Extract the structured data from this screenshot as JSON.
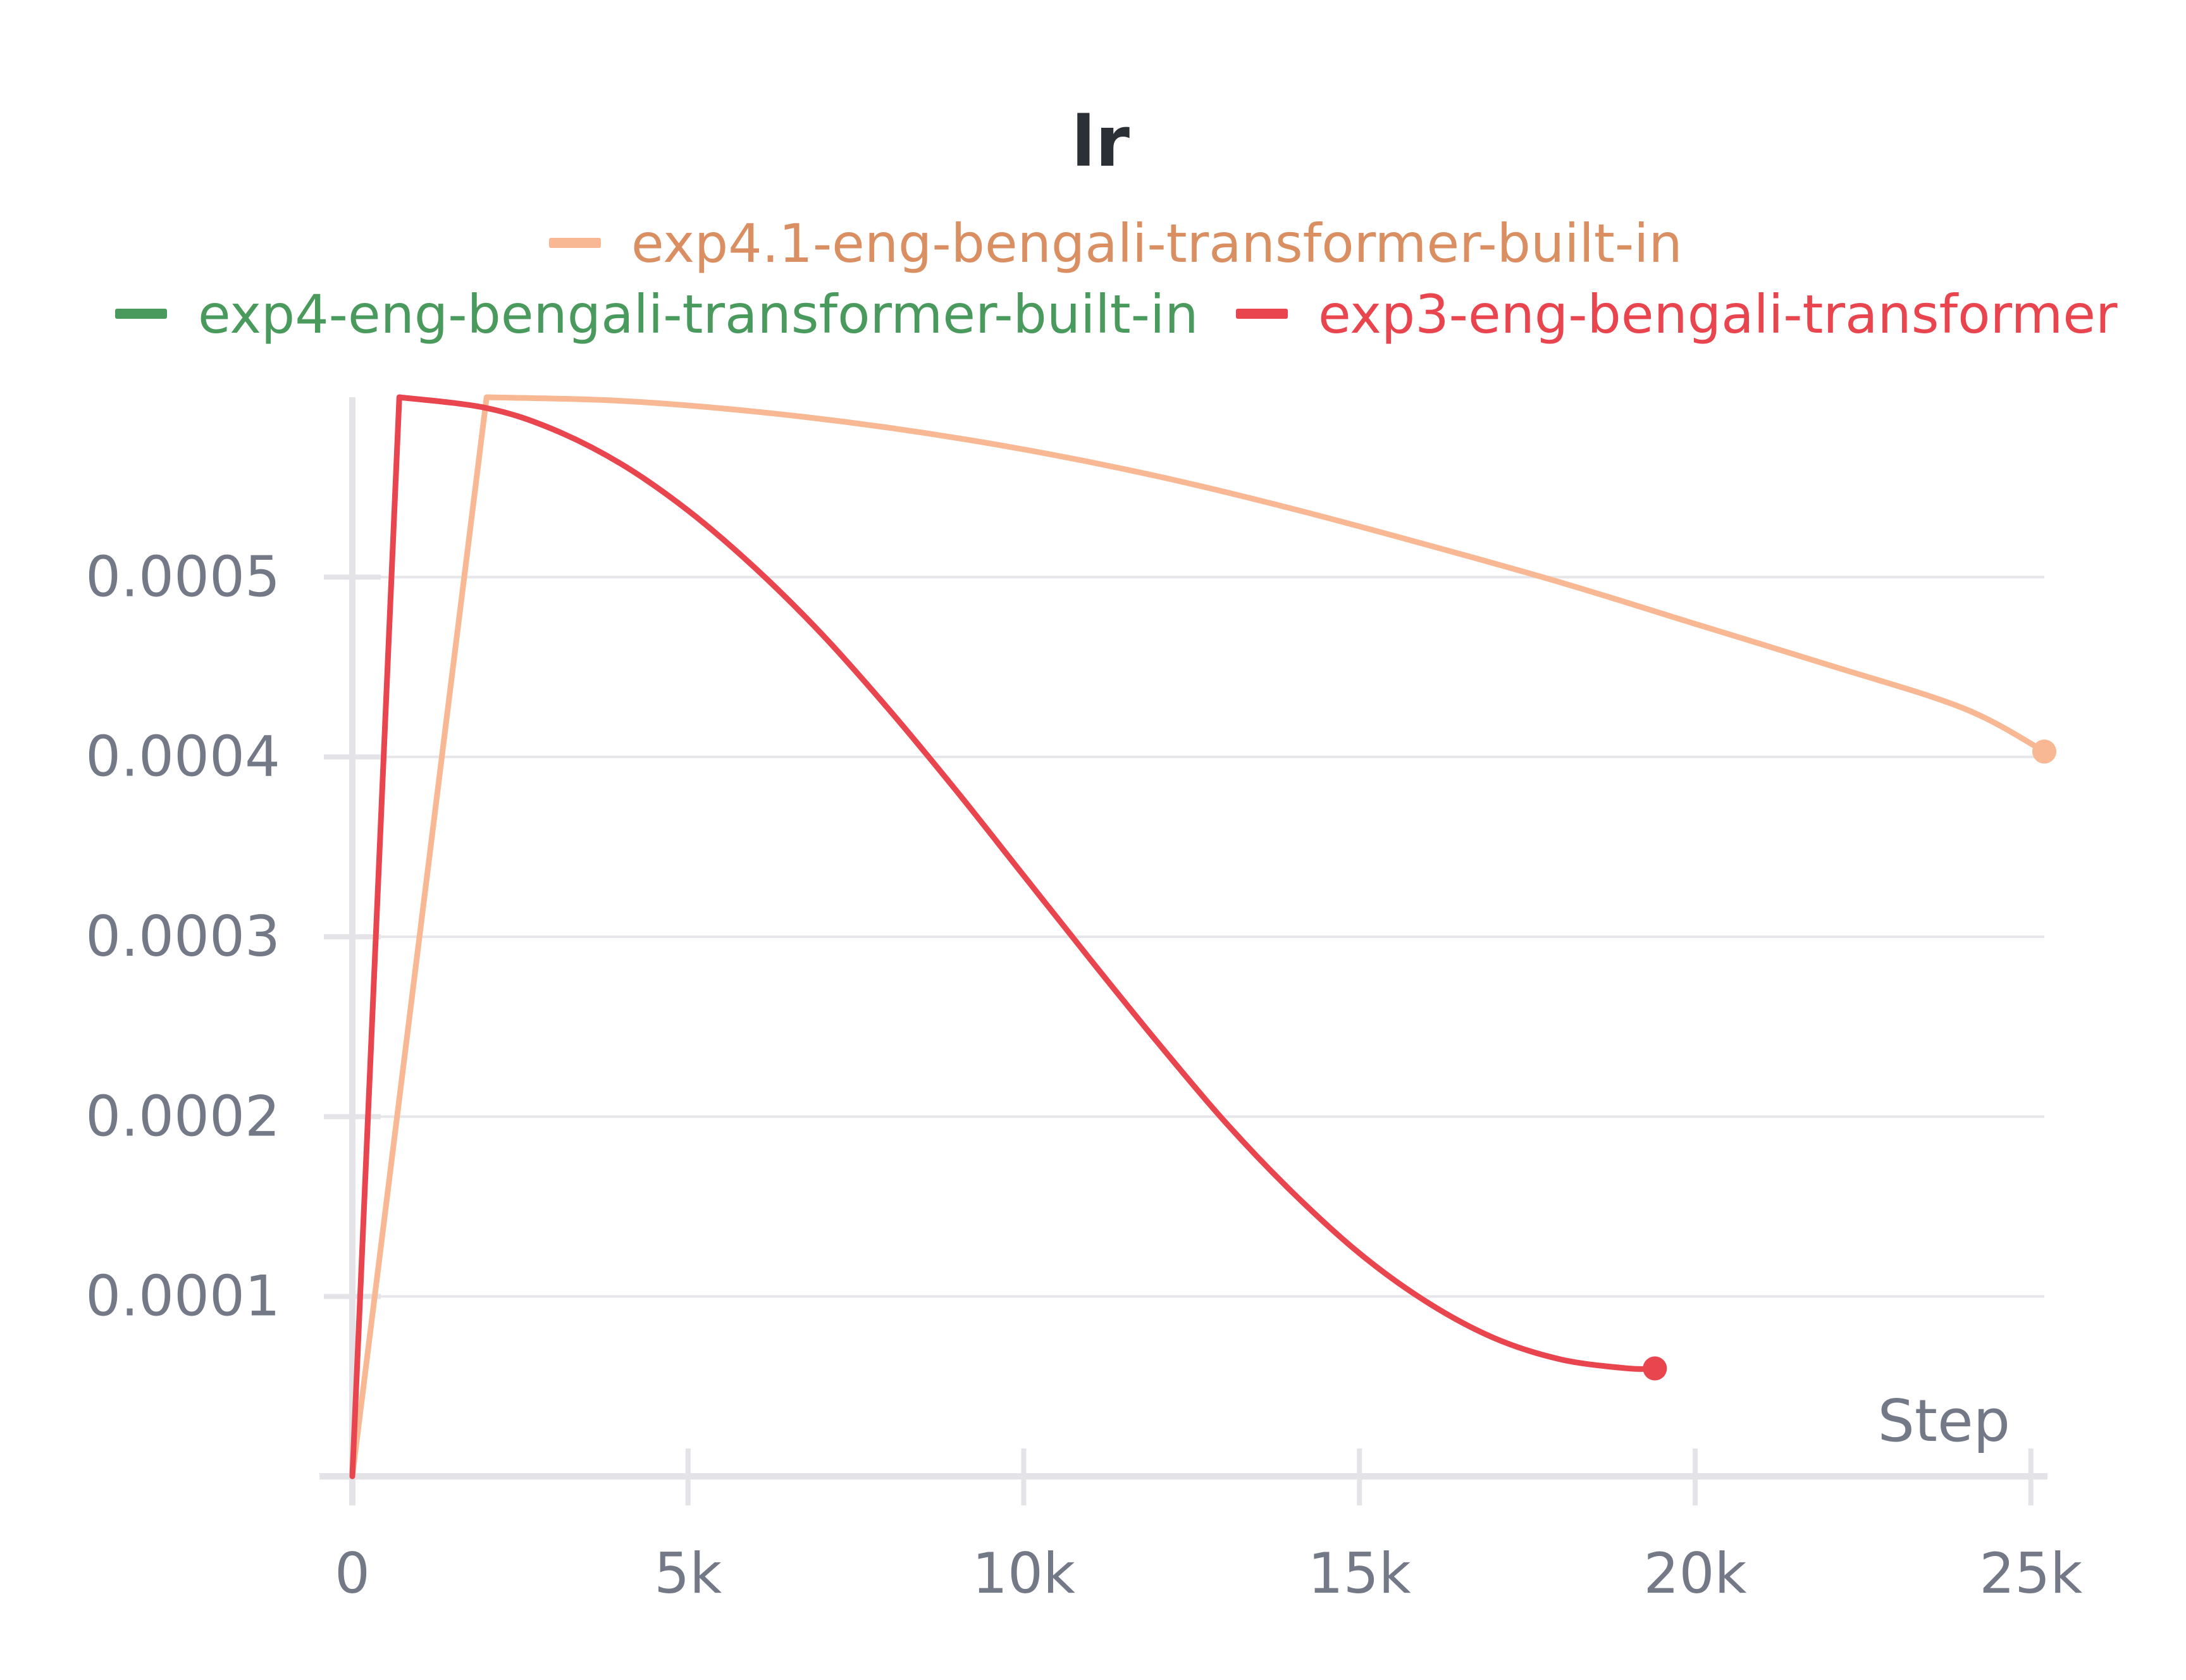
{
  "chart_data": {
    "type": "line",
    "title": "lr",
    "xlabel": "Step",
    "ylabel": "",
    "xlim": [
      0,
      25200
    ],
    "ylim": [
      0,
      0.0006
    ],
    "x_ticks": [
      {
        "value": 0,
        "label": "0"
      },
      {
        "value": 5000,
        "label": "5k"
      },
      {
        "value": 10000,
        "label": "10k"
      },
      {
        "value": 15000,
        "label": "15k"
      },
      {
        "value": 20000,
        "label": "20k"
      },
      {
        "value": 25000,
        "label": "25k"
      }
    ],
    "y_ticks": [
      {
        "value": 0.0001,
        "label": "0.0001"
      },
      {
        "value": 0.0002,
        "label": "0.0002"
      },
      {
        "value": 0.0003,
        "label": "0.0003"
      },
      {
        "value": 0.0004,
        "label": "0.0004"
      },
      {
        "value": 0.0005,
        "label": "0.0005"
      }
    ],
    "grid": "horizontal",
    "legend_position": "top",
    "series": [
      {
        "name": "exp4.1-eng-bengali-transformer-built-in",
        "color": "#f7b893",
        "text_color": "#da8f62",
        "end_marker": true,
        "x": [
          0,
          2000,
          4000,
          6000,
          8000,
          10000,
          12000,
          14000,
          16000,
          18000,
          20000,
          22000,
          24000,
          25200
        ],
        "y": [
          0,
          0.0006,
          0.000598,
          0.000592,
          0.000583,
          0.000571,
          0.000556,
          0.000538,
          0.000518,
          0.000497,
          0.000474,
          0.000451,
          0.000427,
          0.000403
        ]
      },
      {
        "name": "exp4-eng-bengali-transformer-built-in",
        "color": "#4a9a5e",
        "text_color": "#4a9a5e",
        "end_marker": false,
        "x": [],
        "y": []
      },
      {
        "name": "exp3-eng-bengali-transformer",
        "color": "#e8454f",
        "text_color": "#e8454f",
        "end_marker": true,
        "x": [
          0,
          700,
          2000,
          3000,
          4000,
          5000,
          6000,
          7000,
          8000,
          9000,
          10000,
          11000,
          12000,
          13000,
          14000,
          15000,
          16000,
          17000,
          18000,
          19000,
          19400
        ],
        "y": [
          0,
          0.0006,
          0.000594,
          0.000582,
          0.000563,
          0.000537,
          0.000505,
          0.000468,
          0.000426,
          0.000381,
          0.000334,
          0.000287,
          0.000241,
          0.000197,
          0.000158,
          0.000124,
          9.7e-05,
          7.7e-05,
          6.5e-05,
          6e-05,
          6e-05
        ]
      }
    ]
  }
}
